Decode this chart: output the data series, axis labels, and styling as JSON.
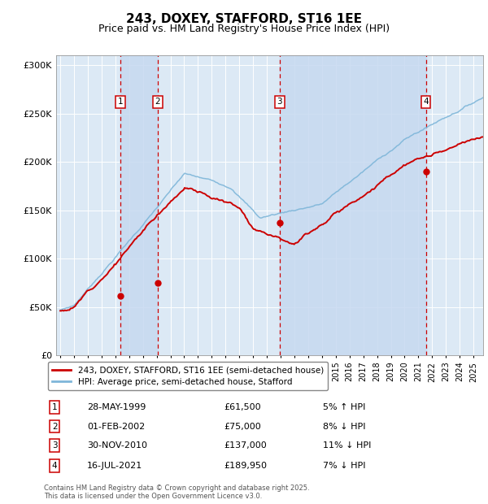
{
  "title": "243, DOXEY, STAFFORD, ST16 1EE",
  "subtitle": "Price paid vs. HM Land Registry's House Price Index (HPI)",
  "title_fontsize": 11,
  "subtitle_fontsize": 9,
  "background_color": "#ffffff",
  "plot_bg_color": "#dce9f5",
  "grid_color": "#ffffff",
  "xlim_start": 1994.7,
  "xlim_end": 2025.7,
  "ylim_min": 0,
  "ylim_max": 310000,
  "yticks": [
    0,
    50000,
    100000,
    150000,
    200000,
    250000,
    300000
  ],
  "ytick_labels": [
    "£0",
    "£50K",
    "£100K",
    "£150K",
    "£200K",
    "£250K",
    "£300K"
  ],
  "hpi_color": "#7eb6d9",
  "price_color": "#cc0000",
  "purchase_marker_color": "#cc0000",
  "vline_color": "#cc0000",
  "shade_color": "#c6d9f0",
  "purchases": [
    {
      "label": "1",
      "date_num": 1999.38,
      "price": 61500,
      "pct": "5%",
      "dir": "↑",
      "date_str": "28-MAY-1999",
      "price_str": "£61,500"
    },
    {
      "label": "2",
      "date_num": 2002.08,
      "price": 75000,
      "pct": "8%",
      "dir": "↓",
      "date_str": "01-FEB-2002",
      "price_str": "£75,000"
    },
    {
      "label": "3",
      "date_num": 2010.92,
      "price": 137000,
      "pct": "11%",
      "dir": "↓",
      "date_str": "30-NOV-2010",
      "price_str": "£137,000"
    },
    {
      "label": "4",
      "date_num": 2021.54,
      "price": 189950,
      "pct": "7%",
      "dir": "↓",
      "date_str": "16-JUL-2021",
      "price_str": "£189,950"
    }
  ],
  "legend_price_label": "243, DOXEY, STAFFORD, ST16 1EE (semi-detached house)",
  "legend_hpi_label": "HPI: Average price, semi-detached house, Stafford",
  "footnote": "Contains HM Land Registry data © Crown copyright and database right 2025.\nThis data is licensed under the Open Government Licence v3.0.",
  "table_rows": [
    [
      "1",
      "28-MAY-1999",
      "£61,500",
      "5% ↑ HPI"
    ],
    [
      "2",
      "01-FEB-2002",
      "£75,000",
      "8% ↓ HPI"
    ],
    [
      "3",
      "30-NOV-2010",
      "£137,000",
      "11% ↓ HPI"
    ],
    [
      "4",
      "16-JUL-2021",
      "£189,950",
      "7% ↓ HPI"
    ]
  ]
}
